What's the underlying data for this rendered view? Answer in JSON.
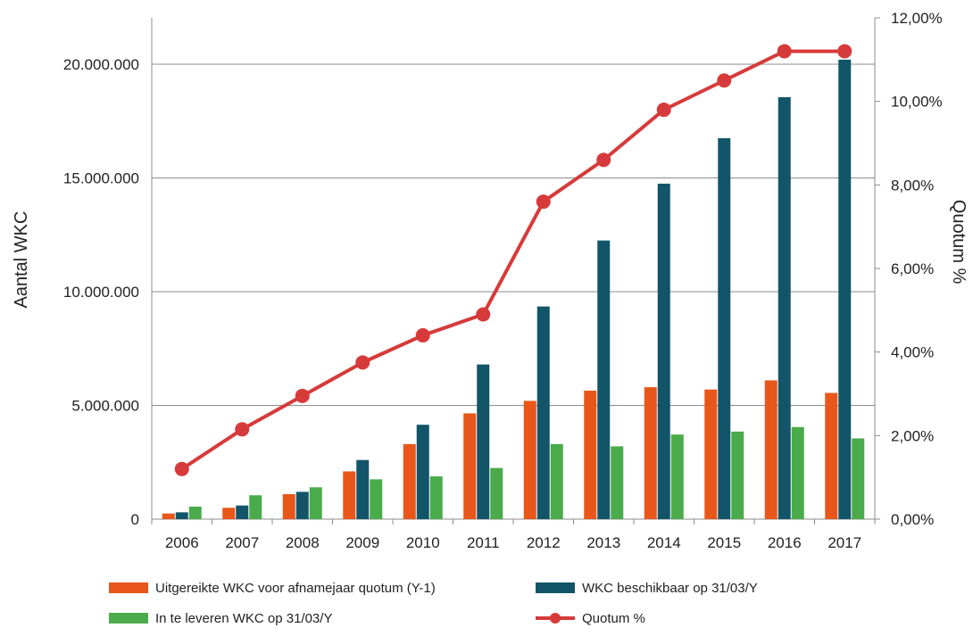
{
  "chart_data": {
    "type": "bar",
    "categories": [
      "2006",
      "2007",
      "2008",
      "2009",
      "2010",
      "2011",
      "2012",
      "2013",
      "2014",
      "2015",
      "2016",
      "2017"
    ],
    "y_left": {
      "label": "Aantal WKC",
      "ylim": [
        0,
        20000000
      ],
      "ticks": [
        0,
        5000000,
        10000000,
        15000000,
        20000000
      ],
      "tick_labels": [
        "0",
        "5.000.000",
        "10.000.000",
        "15.000.000",
        "20.000.000"
      ]
    },
    "y_right": {
      "label": "Quotum %",
      "ylim": [
        0,
        12
      ],
      "ticks": [
        0,
        2,
        4,
        6,
        8,
        10,
        12
      ],
      "tick_labels": [
        "0,00%",
        "2,00%",
        "4,00%",
        "6,00%",
        "8,00%",
        "10,00%",
        "12,00%"
      ]
    },
    "series": [
      {
        "name": "Uitgereikte WKC voor afnamejaar quotum (Y-1)",
        "kind": "bar",
        "axis": "left",
        "color": "#E8561A",
        "values": [
          250000,
          500000,
          1100000,
          2100000,
          3300000,
          4650000,
          5200000,
          5650000,
          5800000,
          5700000,
          6100000,
          5550000
        ]
      },
      {
        "name": "WKC beschikbaar op 31/03/Y",
        "kind": "bar",
        "axis": "left",
        "color": "#125569",
        "values": [
          300000,
          600000,
          1200000,
          2600000,
          4150000,
          6800000,
          9350000,
          12250000,
          14750000,
          16750000,
          18550000,
          20200000
        ]
      },
      {
        "name": "In te leveren WKC op 31/03/Y",
        "kind": "bar",
        "axis": "left",
        "color": "#4AAB4A",
        "values": [
          550000,
          1050000,
          1400000,
          1750000,
          1880000,
          2250000,
          3300000,
          3200000,
          3720000,
          3850000,
          4050000,
          3550000
        ]
      },
      {
        "name": "Quotum %",
        "kind": "line",
        "axis": "right",
        "color": "#D73A3A",
        "values": [
          1.2,
          2.15,
          2.95,
          3.75,
          4.4,
          4.9,
          7.6,
          8.6,
          9.8,
          10.5,
          11.2,
          11.2
        ]
      }
    ],
    "grid": true,
    "legend_position": "bottom"
  }
}
